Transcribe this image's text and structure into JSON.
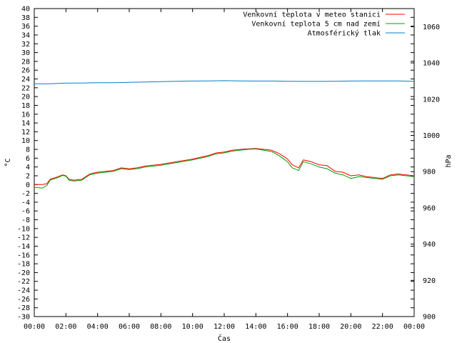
{
  "chart_data": {
    "type": "line",
    "title": "",
    "xlabel": "Čas",
    "ylabel": "°C",
    "y2label": "hPa",
    "xlim": [
      0,
      24
    ],
    "ylim": [
      -30,
      40
    ],
    "y2lim": [
      900,
      1070
    ],
    "x_ticks": [
      "00:00",
      "02:00",
      "04:00",
      "06:00",
      "08:00",
      "10:00",
      "12:00",
      "14:00",
      "16:00",
      "18:00",
      "20:00",
      "22:00",
      "00:00"
    ],
    "y_ticks": [
      40,
      38,
      36,
      34,
      32,
      30,
      28,
      26,
      24,
      22,
      20,
      18,
      16,
      14,
      12,
      10,
      8,
      6,
      4,
      2,
      0,
      -2,
      -4,
      -6,
      -8,
      -10,
      -12,
      -14,
      -16,
      -18,
      -20,
      -22,
      -24,
      -26,
      -28,
      -30
    ],
    "y2_ticks": [
      1060,
      1040,
      1020,
      1000,
      980,
      960,
      940,
      920,
      900
    ],
    "grid": false,
    "legend_position": "top-right",
    "colors": {
      "series_0": "#ff0000",
      "series_1": "#00a000",
      "series_2": "#0080c0"
    },
    "series": [
      {
        "name": "Venkovní teplota v meteo stanici",
        "axis": "left",
        "x": [
          0,
          0.5,
          0.8,
          1.0,
          1.5,
          1.8,
          2.0,
          2.2,
          2.5,
          3.0,
          3.5,
          4.0,
          5.0,
          5.5,
          6.0,
          6.5,
          7.0,
          8.0,
          9.0,
          10.0,
          11.0,
          11.5,
          12.0,
          12.5,
          13.0,
          13.5,
          14.0,
          14.5,
          15.0,
          15.5,
          16.0,
          16.3,
          16.7,
          17.0,
          17.5,
          18.0,
          18.5,
          19.0,
          19.5,
          20.0,
          20.5,
          21.0,
          21.5,
          22.0,
          22.5,
          23.0,
          23.5,
          24.0
        ],
        "y": [
          0.0,
          0.0,
          0.2,
          1.2,
          1.8,
          2.2,
          2.0,
          1.2,
          1.0,
          1.2,
          2.4,
          2.8,
          3.2,
          3.8,
          3.6,
          3.8,
          4.2,
          4.6,
          5.2,
          5.8,
          6.6,
          7.2,
          7.4,
          7.8,
          8.0,
          8.1,
          8.2,
          8.0,
          7.8,
          7.0,
          5.8,
          4.5,
          3.8,
          5.6,
          5.2,
          4.5,
          4.3,
          3.0,
          2.8,
          2.0,
          2.2,
          1.8,
          1.6,
          1.4,
          2.2,
          2.4,
          2.2,
          2.0
        ]
      },
      {
        "name": "Venkovní teplota 5 cm nad zemí",
        "axis": "left",
        "x": [
          0,
          0.5,
          0.8,
          1.0,
          1.5,
          1.8,
          2.0,
          2.2,
          2.5,
          3.0,
          3.5,
          4.0,
          5.0,
          5.5,
          6.0,
          6.5,
          7.0,
          8.0,
          9.0,
          10.0,
          11.0,
          11.5,
          12.0,
          12.5,
          13.0,
          13.5,
          14.0,
          14.5,
          15.0,
          15.5,
          16.0,
          16.3,
          16.7,
          17.0,
          17.5,
          18.0,
          18.5,
          19.0,
          19.5,
          20.0,
          20.5,
          21.0,
          21.5,
          22.0,
          22.5,
          23.0,
          23.5,
          24.0
        ],
        "y": [
          -0.6,
          -0.8,
          -0.2,
          1.0,
          1.6,
          2.1,
          1.9,
          1.0,
          0.8,
          1.0,
          2.2,
          2.6,
          3.0,
          3.6,
          3.4,
          3.6,
          4.0,
          4.4,
          5.0,
          5.6,
          6.4,
          7.0,
          7.2,
          7.6,
          7.8,
          8.0,
          8.1,
          7.8,
          7.5,
          6.5,
          5.2,
          3.8,
          3.2,
          5.2,
          4.7,
          4.0,
          3.6,
          2.6,
          2.2,
          1.4,
          1.8,
          1.6,
          1.4,
          1.2,
          2.0,
          2.2,
          2.0,
          1.8
        ]
      },
      {
        "name": "Atmosférický tlak",
        "axis": "right",
        "x": [
          0,
          1,
          2,
          3,
          4,
          5,
          6,
          7,
          8,
          9,
          10,
          11,
          12,
          13,
          14,
          15,
          16,
          17,
          18,
          19,
          20,
          21,
          22,
          23,
          24
        ],
        "y": [
          1028.5,
          1028.5,
          1028.9,
          1028.9,
          1029.1,
          1029.1,
          1029.3,
          1029.5,
          1029.7,
          1029.9,
          1030.0,
          1030.1,
          1030.2,
          1030.1,
          1030.0,
          1030.0,
          1029.9,
          1029.8,
          1029.8,
          1029.9,
          1030.0,
          1030.1,
          1030.1,
          1030.1,
          1029.8
        ]
      }
    ]
  }
}
